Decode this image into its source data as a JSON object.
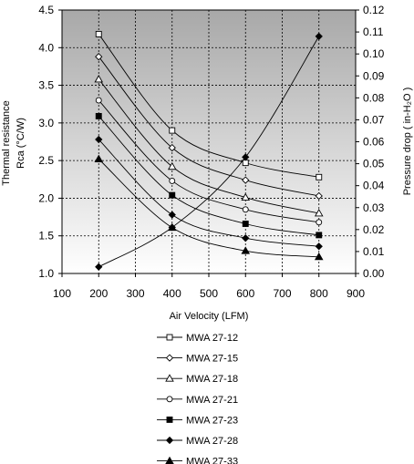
{
  "chart_data": {
    "type": "line",
    "xlabel": "Air Velocity (LFM)",
    "ylabel_left": [
      "Thermal resistance",
      "Rca (°C/W)"
    ],
    "ylabel_right": "Pressure drop ( in-H₂O )",
    "xlim": [
      100,
      900
    ],
    "xticks": [
      100,
      200,
      300,
      400,
      500,
      600,
      700,
      800,
      900
    ],
    "ylim_left": [
      1.0,
      4.5
    ],
    "yticks_left": [
      "1.0",
      "1.5",
      "2.0",
      "2.5",
      "3.0",
      "3.5",
      "4.0",
      "4.5"
    ],
    "ylim_right": [
      0.0,
      0.12
    ],
    "yticks_right": [
      "0.00",
      "0.01",
      "0.02",
      "0.03",
      "0.04",
      "0.05",
      "0.06",
      "0.07",
      "0.08",
      "0.09",
      "0.10",
      "0.11",
      "0.12"
    ],
    "grid": true,
    "legend_position": "bottom",
    "x": [
      200,
      400,
      600,
      800
    ],
    "series": [
      {
        "name": "MWA 27-12",
        "marker": "square-open",
        "values": [
          4.18,
          2.9,
          2.47,
          2.28
        ]
      },
      {
        "name": "MWA 27-15",
        "marker": "diamond-open",
        "values": [
          3.88,
          2.67,
          2.24,
          2.03
        ]
      },
      {
        "name": "MWA 27-18",
        "marker": "triangle-open",
        "values": [
          3.58,
          2.42,
          2.01,
          1.8
        ]
      },
      {
        "name": "MWA 27-21",
        "marker": "circle-open",
        "values": [
          3.3,
          2.23,
          1.85,
          1.68
        ]
      },
      {
        "name": "MWA 27-23",
        "marker": "square-filled",
        "values": [
          3.09,
          2.04,
          1.66,
          1.51
        ]
      },
      {
        "name": "MWA 27-28",
        "marker": "diamond-filled",
        "values": [
          2.78,
          1.78,
          1.47,
          1.36
        ]
      },
      {
        "name": "MWA 27-33",
        "marker": "triangle-filled",
        "values": [
          2.52,
          1.61,
          1.3,
          1.22
        ]
      }
    ],
    "pressure_drop": {
      "axis": "right",
      "marker": "diamond-filled",
      "values": [
        0.003,
        0.021,
        0.053,
        0.108
      ]
    },
    "colors": {
      "plot_gradient_top": "#a8a8a8",
      "plot_gradient_bottom": "#ffffff",
      "line": "#000000",
      "grid": "#000000"
    }
  }
}
